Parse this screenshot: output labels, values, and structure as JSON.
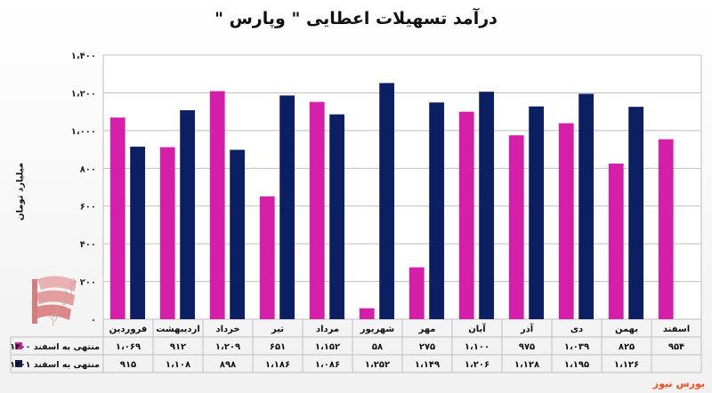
{
  "title": "درآمد تسهیلات اعطایی \" وپارس \"",
  "ylabel": "میلیارد تومان",
  "brand": "بورس نیوز",
  "watermark": "بورس نیوز",
  "colors": {
    "series1": "#d61fa8",
    "series2": "#0c1f63",
    "grid": "#bfbfbf"
  },
  "chart_data": {
    "type": "bar",
    "title": "درآمد تسهیلات اعطایی \" وپارس \"",
    "ylabel": "میلیارد تومان",
    "xlabel": "",
    "ylim": [
      0,
      1400
    ],
    "yticks": [
      "۰",
      "۲۰۰",
      "۴۰۰",
      "۶۰۰",
      "۸۰۰",
      "۱،۰۰۰",
      "۱،۲۰۰",
      "۱،۴۰۰"
    ],
    "grid": true,
    "legend": "table-left",
    "categories": [
      "فروردین",
      "اردیبهشت",
      "خرداد",
      "تیر",
      "مرداد",
      "شهریور",
      "مهر",
      "آبان",
      "آذر",
      "دی",
      "بهمن",
      "اسفند"
    ],
    "series": [
      {
        "name": "منتهی به اسفند ۱۴۰۰",
        "values": [
          1069,
          912,
          1209,
          651,
          1152,
          58,
          275,
          1100,
          975,
          1039,
          825,
          954
        ],
        "labels": [
          "۱،۰۶۹",
          "۹۱۲",
          "۱،۲۰۹",
          "۶۵۱",
          "۱،۱۵۲",
          "۵۸",
          "۲۷۵",
          "۱،۱۰۰",
          "۹۷۵",
          "۱،۰۳۹",
          "۸۲۵",
          "۹۵۴"
        ]
      },
      {
        "name": "منتهی به اسفند ۱۴۰۱",
        "values": [
          915,
          1108,
          898,
          1186,
          1086,
          1252,
          1149,
          1206,
          1128,
          1195,
          1126,
          null
        ],
        "labels": [
          "۹۱۵",
          "۱،۱۰۸",
          "۸۹۸",
          "۱،۱۸۶",
          "۱،۰۸۶",
          "۱،۲۵۲",
          "۱،۱۴۹",
          "۱،۲۰۶",
          "۱،۱۲۸",
          "۱،۱۹۵",
          "۱،۱۲۶",
          ""
        ]
      }
    ]
  }
}
